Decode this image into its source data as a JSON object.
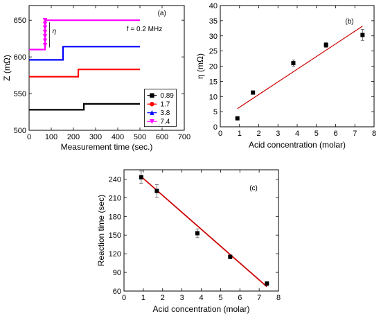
{
  "chart_data": [
    {
      "type": "line",
      "panel_label": "(a)",
      "annotation": "f = 0.2 MHz",
      "eta_label": "η",
      "xlabel": "Measurement time (sec.)",
      "ylabel": "Z (mΩ)",
      "xlim": [
        0,
        700
      ],
      "ylim": [
        500,
        670
      ],
      "xticks": [
        "0",
        "100",
        "200",
        "300",
        "400",
        "500",
        "600",
        "700"
      ],
      "yticks": [
        "500",
        "550",
        "600",
        "650"
      ],
      "legend_position": "bottom-right",
      "series": [
        {
          "name": "0.89",
          "color": "#000000",
          "marker": "square",
          "x": [
            0,
            247,
            247,
            500
          ],
          "y": [
            528,
            528,
            536,
            536
          ]
        },
        {
          "name": "1.7",
          "color": "#ff0000",
          "marker": "circle",
          "x": [
            0,
            222,
            222,
            500
          ],
          "y": [
            573,
            573,
            583,
            583
          ]
        },
        {
          "name": "3.8",
          "color": "#0000ff",
          "marker": "triangle-up",
          "x": [
            0,
            153,
            153,
            500
          ],
          "y": [
            596,
            596,
            614,
            614
          ]
        },
        {
          "name": "7.4",
          "color": "#ff00ff",
          "marker": "triangle-down",
          "x": [
            0,
            72,
            72,
            500
          ],
          "y": [
            610,
            610,
            650,
            650
          ],
          "transition_markers_y": [
            650,
            645,
            640,
            634,
            628,
            622,
            616
          ]
        }
      ]
    },
    {
      "type": "scatter",
      "panel_label": "(b)",
      "xlabel": "Acid concentration (molar)",
      "ylabel": "η (mΩ)",
      "xlim": [
        0,
        8
      ],
      "ylim": [
        0,
        40
      ],
      "xticks": [
        "0",
        "1",
        "2",
        "3",
        "4",
        "5",
        "6",
        "7",
        "8"
      ],
      "yticks": [
        "0",
        "5",
        "10",
        "15",
        "20",
        "25",
        "30",
        "35",
        "40"
      ],
      "points": [
        {
          "x": 0.89,
          "y": 2.8,
          "err": 0.5
        },
        {
          "x": 1.7,
          "y": 11.3,
          "err": 0.5
        },
        {
          "x": 3.8,
          "y": 21.0,
          "err": 1.0
        },
        {
          "x": 5.5,
          "y": 27.0,
          "err": 0.8
        },
        {
          "x": 7.4,
          "y": 30.3,
          "err": 1.8
        }
      ],
      "fit": {
        "x": [
          0.89,
          7.4
        ],
        "y": [
          6.0,
          33.2
        ],
        "color": "#cc0000"
      }
    },
    {
      "type": "scatter",
      "panel_label": "(c)",
      "xlabel": "Acid concentration (molar)",
      "ylabel": "Reaction time (sec)",
      "xlim": [
        0,
        8
      ],
      "ylim": [
        60,
        255
      ],
      "xticks": [
        "0",
        "1",
        "2",
        "3",
        "4",
        "5",
        "6",
        "7",
        "8"
      ],
      "yticks": [
        "60",
        "90",
        "120",
        "150",
        "180",
        "210",
        "240"
      ],
      "points": [
        {
          "x": 0.89,
          "y": 243,
          "err": 10
        },
        {
          "x": 1.7,
          "y": 221,
          "err": 10
        },
        {
          "x": 3.8,
          "y": 153,
          "err": 7
        },
        {
          "x": 5.5,
          "y": 115,
          "err": 3
        },
        {
          "x": 7.4,
          "y": 72,
          "err": 3
        }
      ],
      "fit": {
        "x": [
          0.89,
          7.4
        ],
        "y": [
          244,
          67
        ],
        "color": "#cc0000"
      }
    }
  ]
}
